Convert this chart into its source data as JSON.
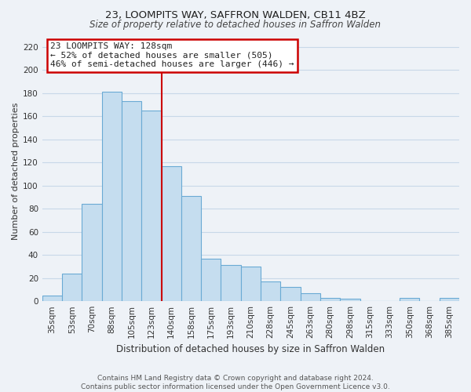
{
  "title1": "23, LOOMPITS WAY, SAFFRON WALDEN, CB11 4BZ",
  "title2": "Size of property relative to detached houses in Saffron Walden",
  "xlabel": "Distribution of detached houses by size in Saffron Walden",
  "ylabel": "Number of detached properties",
  "bar_labels": [
    "35sqm",
    "53sqm",
    "70sqm",
    "88sqm",
    "105sqm",
    "123sqm",
    "140sqm",
    "158sqm",
    "175sqm",
    "193sqm",
    "210sqm",
    "228sqm",
    "245sqm",
    "263sqm",
    "280sqm",
    "298sqm",
    "315sqm",
    "333sqm",
    "350sqm",
    "368sqm",
    "385sqm"
  ],
  "bar_values": [
    5,
    24,
    84,
    181,
    173,
    165,
    117,
    91,
    37,
    31,
    30,
    17,
    12,
    7,
    3,
    2,
    0,
    0,
    3,
    0,
    3
  ],
  "bar_color": "#c5ddef",
  "bar_edge_color": "#6aaad4",
  "vline_color": "#cc0000",
  "vline_x_index": 5.5,
  "annotation_line1": "23 LOOMPITS WAY: 128sqm",
  "annotation_line2": "← 52% of detached houses are smaller (505)",
  "annotation_line3": "46% of semi-detached houses are larger (446) →",
  "annotation_box_color": "#ffffff",
  "annotation_box_edge": "#cc0000",
  "ylim_max": 225,
  "yticks": [
    0,
    20,
    40,
    60,
    80,
    100,
    120,
    140,
    160,
    180,
    200,
    220
  ],
  "grid_color": "#c8d8e8",
  "footer_line1": "Contains HM Land Registry data © Crown copyright and database right 2024.",
  "footer_line2": "Contains public sector information licensed under the Open Government Licence v3.0.",
  "background_color": "#eef2f7",
  "title1_fontsize": 9.5,
  "title2_fontsize": 8.5,
  "xlabel_fontsize": 8.5,
  "ylabel_fontsize": 8.0,
  "tick_fontsize": 7.5,
  "annot_fontsize": 8.0,
  "footer_fontsize": 6.5
}
